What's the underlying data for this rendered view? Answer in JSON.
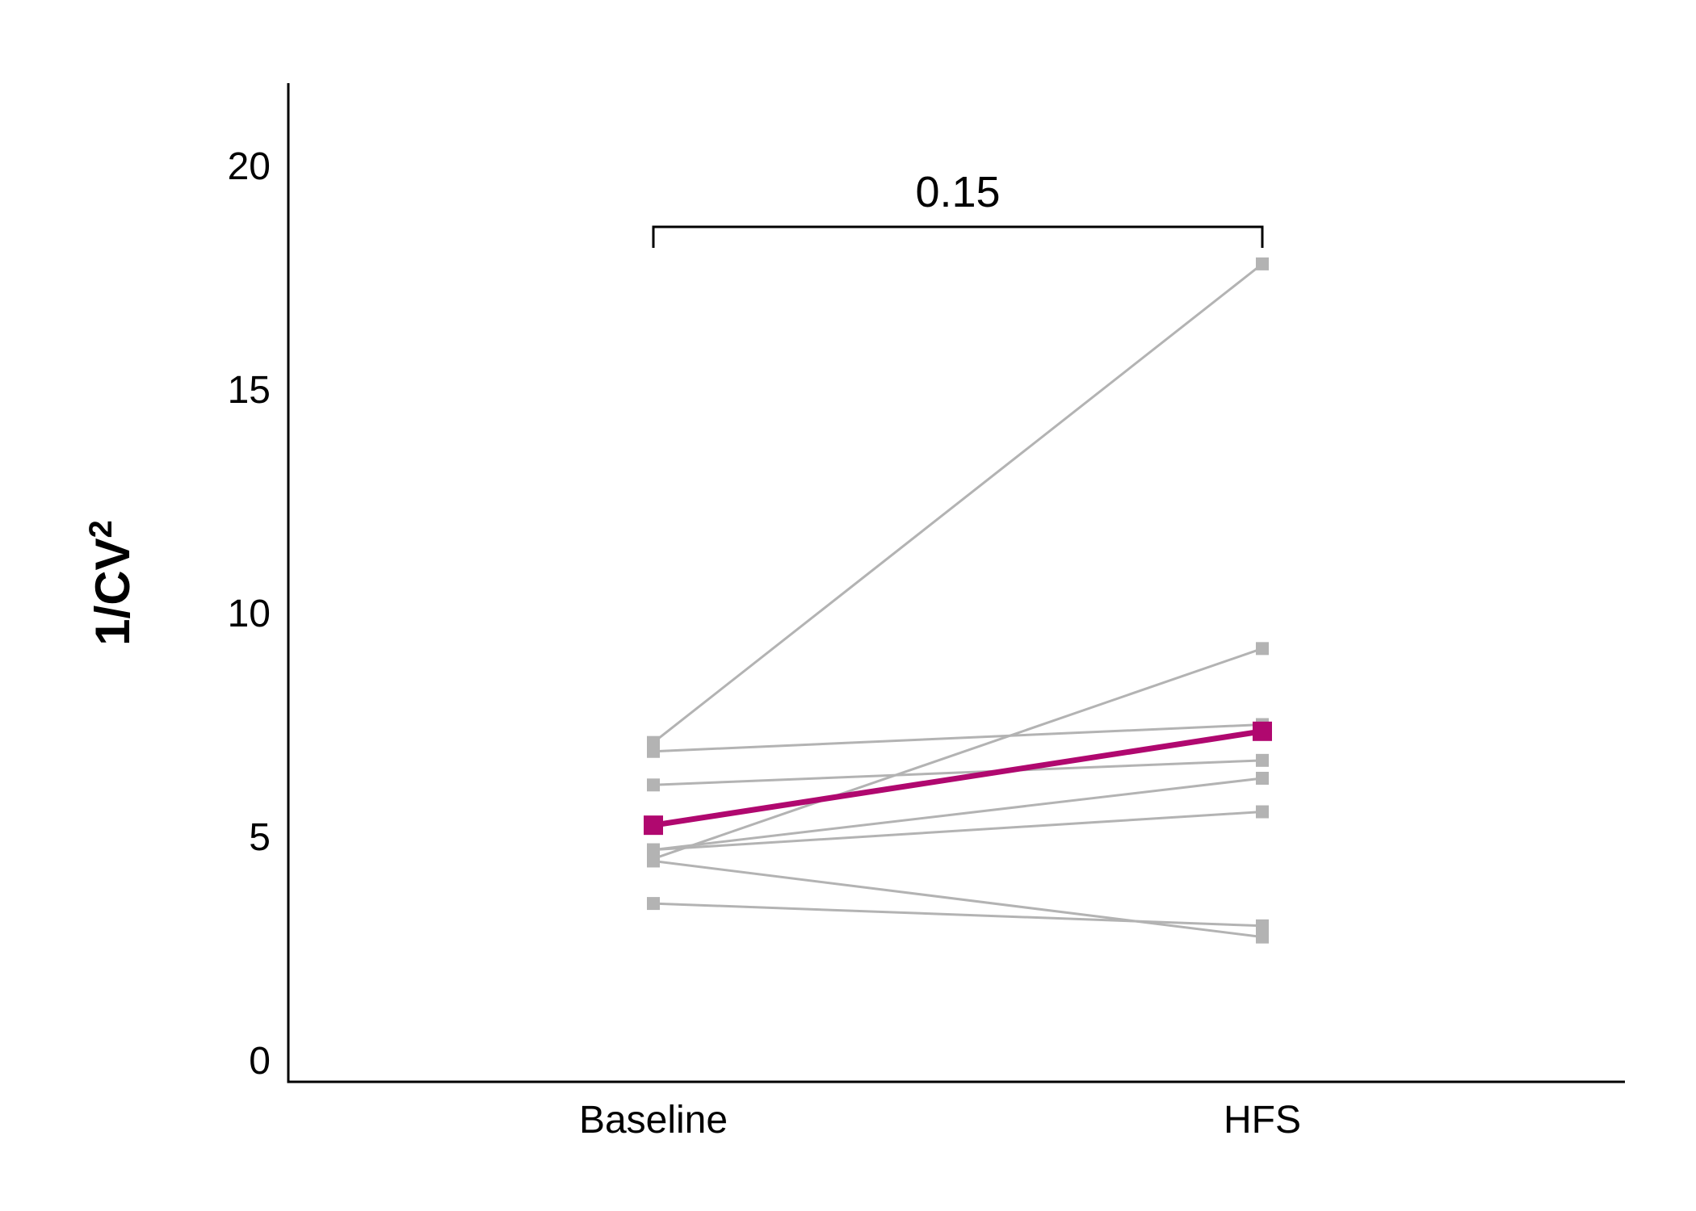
{
  "chart_data": {
    "type": "line",
    "categories": [
      "Baseline",
      "HFS"
    ],
    "ylabel": "1/CV",
    "ylabel_superscript": "2",
    "xlabel": "",
    "ylim": [
      0,
      22
    ],
    "y_ticks": [
      0,
      5,
      10,
      15,
      20
    ],
    "grid": false,
    "series": [
      {
        "values": [
          7.1,
          17.8
        ],
        "color": "#b3b3b3"
      },
      {
        "values": [
          4.5,
          9.2
        ],
        "color": "#b3b3b3"
      },
      {
        "values": [
          6.9,
          7.5
        ],
        "color": "#b3b3b3"
      },
      {
        "values": [
          6.15,
          6.7
        ],
        "color": "#b3b3b3"
      },
      {
        "values": [
          4.7,
          6.3
        ],
        "color": "#b3b3b3"
      },
      {
        "values": [
          4.7,
          5.55
        ],
        "color": "#b3b3b3"
      },
      {
        "values": [
          4.45,
          2.75
        ],
        "color": "#b3b3b3"
      },
      {
        "values": [
          3.5,
          3.0
        ],
        "color": "#b3b3b3"
      },
      {
        "values": [
          5.25,
          7.35
        ],
        "color": "#b0086f",
        "emphasis": true
      }
    ],
    "annotations": [
      {
        "type": "bracket",
        "from": "Baseline",
        "to": "HFS",
        "text": "0.15"
      }
    ]
  },
  "colors": {
    "individual": "#b3b3b3",
    "mean": "#b0086f",
    "axis": "#000000"
  }
}
